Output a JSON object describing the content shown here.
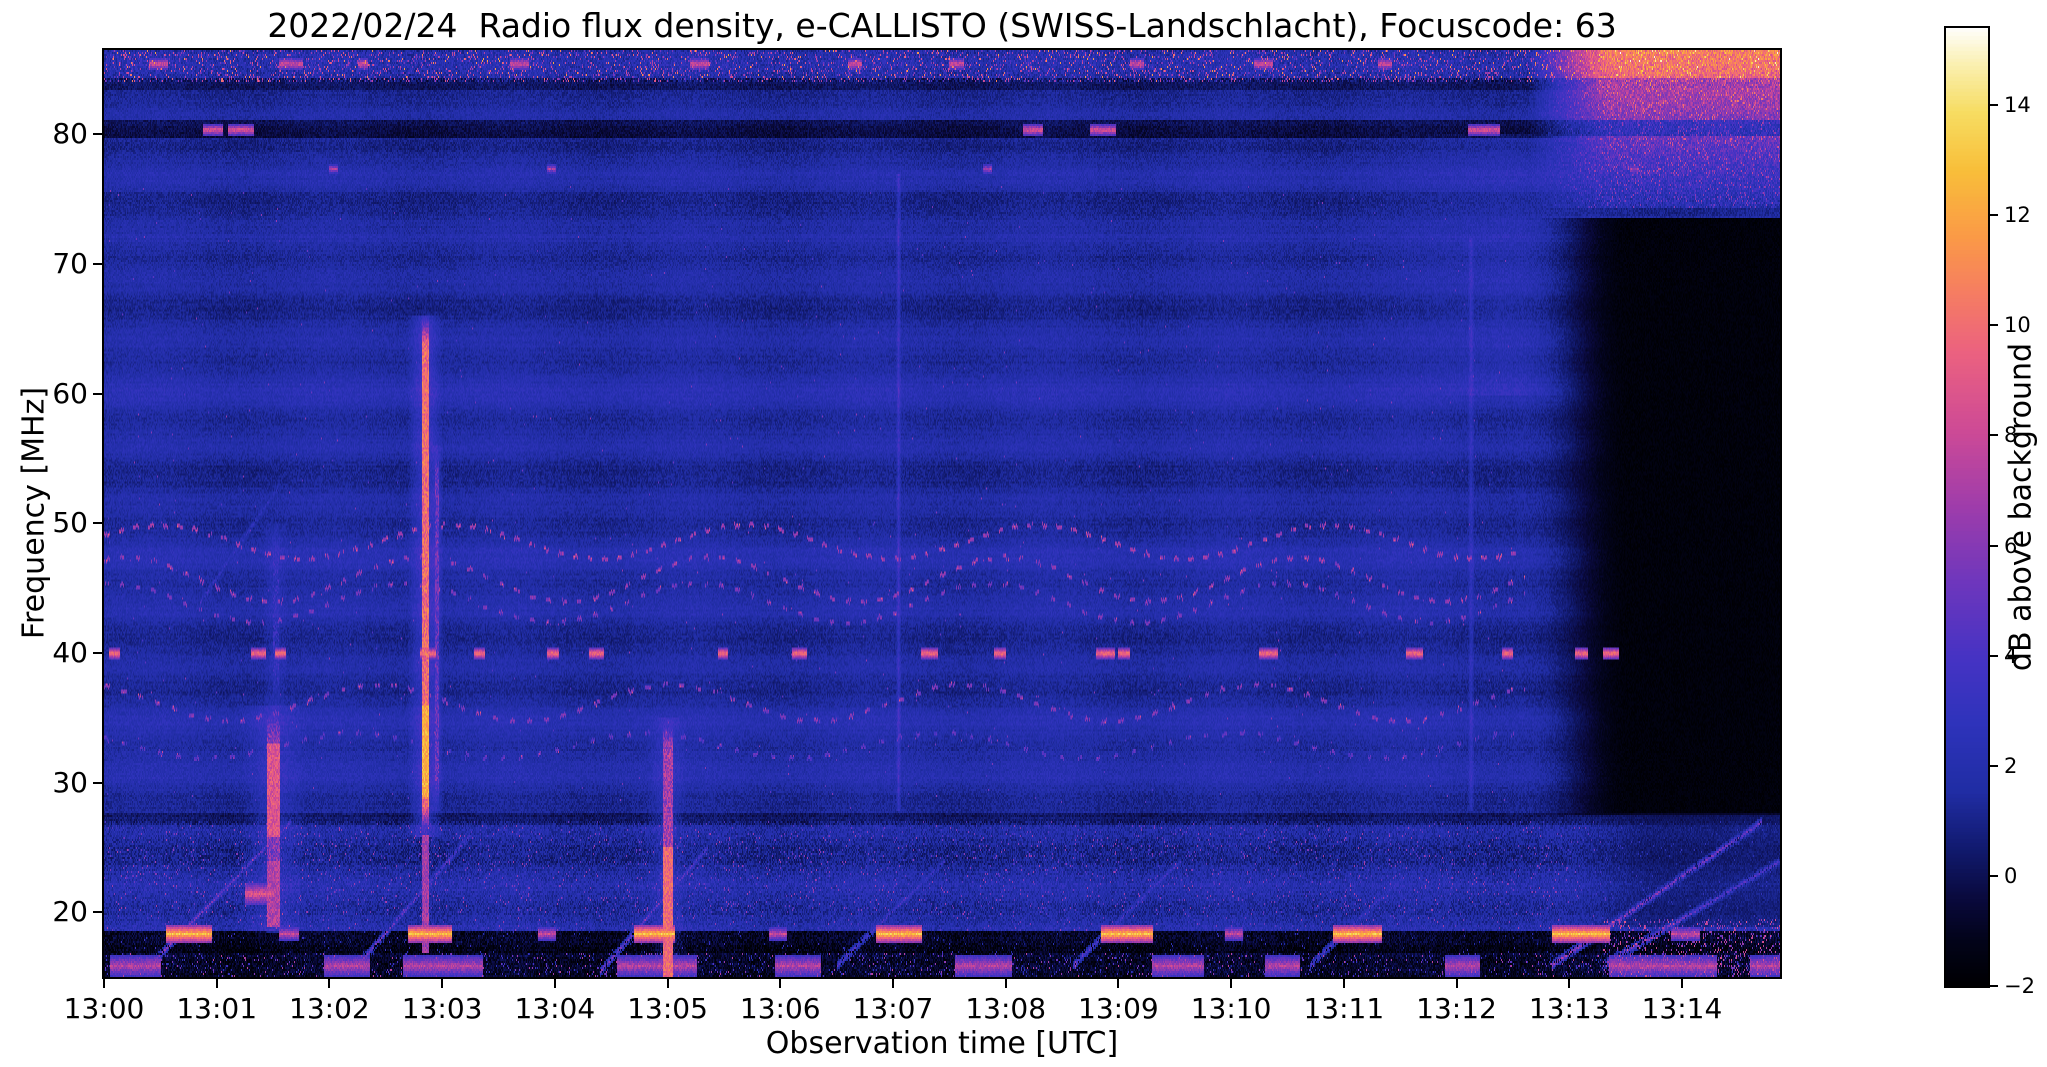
{
  "chart_data": {
    "type": "heatmap",
    "title": "2022/02/24  Radio flux density, e-CALLISTO (SWISS-Landschlacht), Focuscode: 63",
    "xlabel": "Observation time [UTC]",
    "ylabel": "Frequency [MHz]",
    "date": "2022/02/24",
    "instrument": "e-CALLISTO (SWISS-Landschlacht)",
    "focuscode": "63",
    "start_time_utc": "13:00",
    "x_tick_labels": [
      "13:00",
      "13:01",
      "13:02",
      "13:03",
      "13:04",
      "13:05",
      "13:06",
      "13:07",
      "13:08",
      "13:09",
      "13:10",
      "13:11",
      "13:12",
      "13:13",
      "13:14"
    ],
    "x_tick_minutes": [
      0,
      1,
      2,
      3,
      4,
      5,
      6,
      7,
      8,
      9,
      10,
      11,
      12,
      13,
      14
    ],
    "x_range_minutes": [
      0,
      14.87
    ],
    "y_ticks": [
      80,
      70,
      60,
      50,
      40,
      30,
      20
    ],
    "freq_range_mhz": [
      15,
      86.5
    ],
    "grid": false,
    "background_level_db": 1.6,
    "colorbar": {
      "label": "dB above background",
      "ticks": [
        {
          "v": 14,
          "label": "14"
        },
        {
          "v": 12,
          "label": "12"
        },
        {
          "v": 10,
          "label": "10"
        },
        {
          "v": 8,
          "label": "8"
        },
        {
          "v": 6,
          "label": "6"
        },
        {
          "v": 4,
          "label": "4"
        },
        {
          "v": 2,
          "label": "2"
        },
        {
          "v": 0,
          "label": "0"
        },
        {
          "v": -2,
          "label": "−2"
        }
      ],
      "range": [
        -2,
        15.4
      ],
      "colormap_stops": [
        [
          0.0,
          "#000003"
        ],
        [
          0.045,
          "#03041a"
        ],
        [
          0.09,
          "#0a0a3e"
        ],
        [
          0.14,
          "#111a6e"
        ],
        [
          0.2,
          "#202da4"
        ],
        [
          0.27,
          "#2e33bb"
        ],
        [
          0.34,
          "#4633c4"
        ],
        [
          0.42,
          "#6f37bd"
        ],
        [
          0.5,
          "#a03dab"
        ],
        [
          0.58,
          "#cf4b96"
        ],
        [
          0.66,
          "#ec6280"
        ],
        [
          0.72,
          "#f67d63"
        ],
        [
          0.78,
          "#fb9a47"
        ],
        [
          0.85,
          "#f9bf3a"
        ],
        [
          0.91,
          "#f7dd62"
        ],
        [
          0.96,
          "#fbf0b0"
        ],
        [
          1.0,
          "#ffffff"
        ]
      ]
    },
    "features": [
      {
        "type": "hband",
        "f0": 17.0,
        "f1": 18.6,
        "delta": -3.2
      },
      {
        "type": "hband",
        "f0": 15.0,
        "f1": 16.9,
        "delta": -2.2
      },
      {
        "type": "hband",
        "f0": 79.9,
        "f1": 81.1,
        "delta": -1.7
      },
      {
        "type": "hband",
        "f0": 83.6,
        "f1": 84.3,
        "delta": -1.1
      },
      {
        "type": "hband",
        "f0": 72.5,
        "f1": 75.5,
        "delta": -0.6
      },
      {
        "type": "hband",
        "f0": 26.8,
        "f1": 27.6,
        "delta": -1.1
      },
      {
        "type": "vline",
        "t": 12.4,
        "dt": 0.9,
        "f0": 60,
        "f1": 80,
        "delta": 0.8
      },
      {
        "type": "fade",
        "t0": 12.55,
        "t1": 13.55,
        "f0": 27.6,
        "f1": 73.5,
        "target": -1.7,
        "partial": 1
      },
      {
        "type": "fade",
        "t0": 12.8,
        "t1": 13.8,
        "f0": 19.0,
        "f1": 27.6,
        "target": 0.0,
        "partial": 0.55
      },
      {
        "type": "topright",
        "t0": 12.65,
        "ramp": 0.7,
        "f0": 74.5,
        "f1": 86.5,
        "lanes": [
          [
            79.9,
            81.1
          ],
          [
            83.6,
            84.3
          ]
        ]
      },
      {
        "type": "vline",
        "t": 7.05,
        "dt": 0.025,
        "f0": 28,
        "f1": 77,
        "delta": 1.8
      },
      {
        "type": "vline",
        "t": 12.13,
        "dt": 0.03,
        "f0": 28,
        "f1": 72,
        "delta": 1.4
      },
      {
        "type": "vburst",
        "t": 2.85,
        "dt": 0.05,
        "f0": 26,
        "f1": 66,
        "db": 11.5,
        "halo_dt": 0.16,
        "halo_db": 2.2,
        "hot": [
          {
            "f0": 29,
            "f1": 36,
            "db": 13.5
          },
          {
            "f0": 54,
            "f1": 62,
            "db": 10.5
          },
          {
            "f0": 17,
            "f1": 26,
            "db": 8
          }
        ]
      },
      {
        "type": "vburst",
        "t": 2.95,
        "dt": 0.03,
        "f0": 28,
        "f1": 56,
        "db": 6.5,
        "halo_dt": 0.06,
        "halo_db": 1,
        "hot": []
      },
      {
        "type": "vburst",
        "t": 1.5,
        "dt": 0.1,
        "f0": 18.5,
        "f1": 36,
        "db": 7.5,
        "halo_dt": 0.3,
        "halo_db": 1.4,
        "hot": [
          {
            "f0": 26,
            "f1": 33,
            "db": 10
          },
          {
            "f0": 19,
            "f1": 24,
            "db": 8.5
          }
        ]
      },
      {
        "type": "vburst",
        "t": 1.52,
        "dt": 0.05,
        "f0": 36,
        "f1": 50,
        "db": 4.2,
        "halo_dt": 0.12,
        "halo_db": 0.8,
        "hot": []
      },
      {
        "type": "vburst",
        "t": 5.0,
        "dt": 0.08,
        "f0": 15,
        "f1": 35,
        "db": 8.5,
        "halo_dt": 0.18,
        "halo_db": 1.2,
        "hot": [
          {
            "f0": 15,
            "f1": 25,
            "db": 11
          }
        ]
      },
      {
        "type": "wavy",
        "f0": 48.7,
        "amp": 1.3,
        "period": 2.6,
        "phase": 0.4,
        "t0": 0,
        "t1": 12.6,
        "db": 6.4,
        "dot": 0.05,
        "gap": 0.08
      },
      {
        "type": "wavy",
        "f0": 45.8,
        "amp": 1.7,
        "period": 2.6,
        "phase": 1.1,
        "t0": 0,
        "t1": 12.6,
        "db": 6.0,
        "dot": 0.05,
        "gap": 0.09
      },
      {
        "type": "wavy",
        "f0": 44.0,
        "amp": 1.5,
        "period": 2.6,
        "phase": 1.4,
        "t0": 0,
        "t1": 12.6,
        "db": 5.4,
        "dot": 0.04,
        "gap": 0.1
      },
      {
        "type": "wavy",
        "f0": 36.3,
        "amp": 1.4,
        "period": 2.6,
        "phase": 2.0,
        "t0": 0,
        "t1": 12.6,
        "db": 5.6,
        "dot": 0.05,
        "gap": 0.1
      },
      {
        "type": "wavy",
        "f0": 33.0,
        "amp": 1.0,
        "period": 2.6,
        "phase": 2.5,
        "t0": 0,
        "t1": 12.6,
        "db": 4.6,
        "dot": 0.04,
        "gap": 0.12
      },
      {
        "type": "dashes",
        "f": 40.0,
        "df": 0.8,
        "db": 11.5,
        "segments": [
          [
            0.04,
            0.13
          ],
          [
            1.3,
            1.43
          ],
          [
            1.52,
            1.61
          ],
          [
            2.8,
            2.94
          ],
          [
            3.28,
            3.37
          ],
          [
            3.93,
            4.03
          ],
          [
            4.3,
            4.43
          ],
          [
            5.45,
            5.53
          ],
          [
            6.1,
            6.23
          ],
          [
            7.25,
            7.39
          ],
          [
            7.9,
            7.99
          ],
          [
            8.8,
            8.96
          ],
          [
            9.0,
            9.09
          ],
          [
            10.25,
            10.41
          ],
          [
            11.55,
            11.69
          ],
          [
            12.4,
            12.49
          ],
          [
            13.05,
            13.16
          ],
          [
            13.3,
            13.43
          ]
        ]
      },
      {
        "type": "dashes",
        "f": 80.4,
        "df": 0.7,
        "db": 10,
        "segments": [
          [
            0.88,
            1.05
          ],
          [
            1.1,
            1.32
          ],
          [
            8.15,
            8.32
          ],
          [
            8.75,
            8.97
          ],
          [
            12.1,
            12.38
          ]
        ]
      },
      {
        "type": "dashes",
        "f": 77.4,
        "df": 0.5,
        "db": 8,
        "segments": [
          [
            2.0,
            2.07
          ],
          [
            3.93,
            4.0
          ],
          [
            7.8,
            7.87
          ],
          [
            13.54,
            13.61
          ]
        ]
      },
      {
        "type": "dashes",
        "f": 85.5,
        "df": 0.9,
        "db": 9.5,
        "segments": [
          [
            0.4,
            0.56
          ],
          [
            1.55,
            1.76
          ],
          [
            2.25,
            2.33
          ],
          [
            3.6,
            3.76
          ],
          [
            5.2,
            5.36
          ],
          [
            6.6,
            6.72
          ],
          [
            7.5,
            7.62
          ],
          [
            9.1,
            9.22
          ],
          [
            10.2,
            10.36
          ],
          [
            11.3,
            11.42
          ]
        ]
      },
      {
        "type": "diag",
        "t0": 0.35,
        "f0": 15.5,
        "t1": 1.65,
        "f1": 27.0,
        "w": 0.7,
        "db": 6.8
      },
      {
        "type": "diag",
        "t0": 2.2,
        "f0": 15.5,
        "t1": 3.25,
        "f1": 26.0,
        "w": 0.7,
        "db": 6.2
      },
      {
        "type": "diag",
        "t0": 4.4,
        "f0": 15.5,
        "t1": 5.35,
        "f1": 25.0,
        "w": 0.7,
        "db": 6.2
      },
      {
        "type": "diag",
        "t0": 6.5,
        "f0": 16.0,
        "t1": 7.45,
        "f1": 24.0,
        "w": 0.6,
        "db": 5.0
      },
      {
        "type": "diag",
        "t0": 8.6,
        "f0": 16.0,
        "t1": 9.55,
        "f1": 24.0,
        "w": 0.6,
        "db": 5.0
      },
      {
        "type": "diag",
        "t0": 10.7,
        "f0": 16.0,
        "t1": 11.55,
        "f1": 23.0,
        "w": 0.6,
        "db": 4.6
      },
      {
        "type": "diag",
        "t0": 12.85,
        "f0": 16.0,
        "t1": 14.7,
        "f1": 27.0,
        "w": 0.7,
        "db": 7.5
      },
      {
        "type": "diag",
        "t0": 13.3,
        "f0": 16.0,
        "t1": 14.87,
        "f1": 24.0,
        "w": 0.6,
        "db": 6.0
      },
      {
        "type": "diag",
        "t0": 0.85,
        "f0": 44.0,
        "t1": 1.55,
        "f1": 53.0,
        "w": 0.9,
        "db": 3.8
      },
      {
        "type": "blobs",
        "f": 18.4,
        "df": 1.1,
        "db": 14,
        "segments": [
          [
            0.55,
            0.95
          ],
          [
            2.7,
            3.08
          ],
          [
            4.7,
            5.06
          ],
          [
            6.85,
            7.25
          ],
          [
            8.85,
            9.3
          ],
          [
            10.9,
            11.33
          ],
          [
            12.85,
            13.35
          ]
        ]
      },
      {
        "type": "blobs",
        "f": 18.4,
        "df": 0.9,
        "db": 9,
        "segments": [
          [
            1.55,
            1.72
          ],
          [
            3.85,
            4.0
          ],
          [
            5.9,
            6.05
          ],
          [
            9.95,
            10.1
          ],
          [
            13.9,
            14.15
          ]
        ]
      },
      {
        "type": "blobs",
        "f": 21.5,
        "df": 1.5,
        "db": 10,
        "segments": [
          [
            1.25,
            1.5
          ]
        ]
      },
      {
        "type": "blobs",
        "f": 15.9,
        "df": 1.6,
        "db": 8.5,
        "segments": [
          [
            0.05,
            0.5
          ],
          [
            1.95,
            2.35
          ],
          [
            2.65,
            3.35
          ],
          [
            4.55,
            5.25
          ],
          [
            5.95,
            6.35
          ],
          [
            7.55,
            8.05
          ],
          [
            9.3,
            9.75
          ],
          [
            10.3,
            10.6
          ],
          [
            11.9,
            12.2
          ],
          [
            13.35,
            14.3
          ],
          [
            14.6,
            14.87
          ]
        ]
      },
      {
        "type": "speckle",
        "f0": 15.0,
        "f1": 19.5,
        "t0": 13.3,
        "t1": 14.87,
        "density": 0.12,
        "db0": 4,
        "db1": 9
      },
      {
        "type": "speckle",
        "f0": 20.0,
        "f1": 26.5,
        "t0": 0,
        "t1": 12.9,
        "density": 0.015,
        "db0": 4,
        "db1": 7
      },
      {
        "type": "speckle",
        "f0": 84.2,
        "f1": 86.5,
        "t0": 0,
        "t1": 14.87,
        "density": 0.1,
        "db0": 3,
        "db1": 9
      },
      {
        "type": "speckle",
        "f0": 28.0,
        "f1": 76.0,
        "t0": 0,
        "t1": 12.5,
        "density": 0.0015,
        "db0": 4,
        "db1": 6.5
      }
    ]
  }
}
